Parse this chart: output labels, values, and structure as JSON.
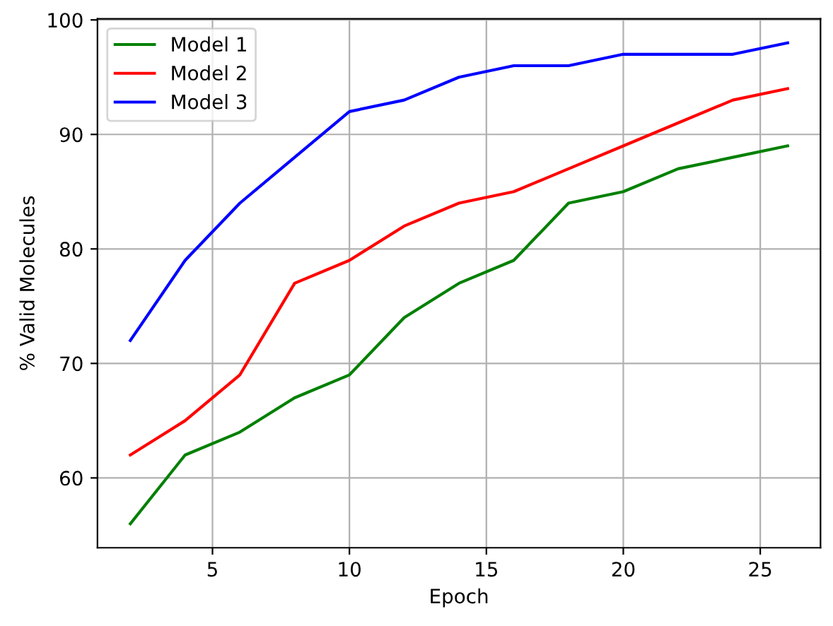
{
  "chart_data": {
    "type": "line",
    "xlabel": "Epoch",
    "ylabel": "% Valid Molecules",
    "x": [
      2,
      4,
      6,
      8,
      10,
      12,
      14,
      16,
      18,
      20,
      22,
      24,
      26
    ],
    "series": [
      {
        "name": "Model 1",
        "color": "#008000",
        "values": [
          56,
          62,
          64,
          67,
          69,
          74,
          77,
          79,
          84,
          85,
          87,
          88,
          89
        ]
      },
      {
        "name": "Model 2",
        "color": "#ff0000",
        "values": [
          62,
          65,
          69,
          77,
          79,
          82,
          84,
          85,
          87,
          89,
          91,
          93,
          94
        ]
      },
      {
        "name": "Model 3",
        "color": "#0000ff",
        "values": [
          72,
          79,
          84,
          88,
          92,
          93,
          95,
          96,
          96,
          97,
          97,
          97,
          98
        ]
      }
    ],
    "xlim": [
      0.8,
      27.2
    ],
    "xticks": [
      5,
      10,
      15,
      20,
      25
    ],
    "ylim": [
      53.9,
      100.1
    ],
    "yticks": [
      60,
      70,
      80,
      90,
      100
    ],
    "grid": true,
    "legend": "top left",
    "line_style": "solid"
  }
}
